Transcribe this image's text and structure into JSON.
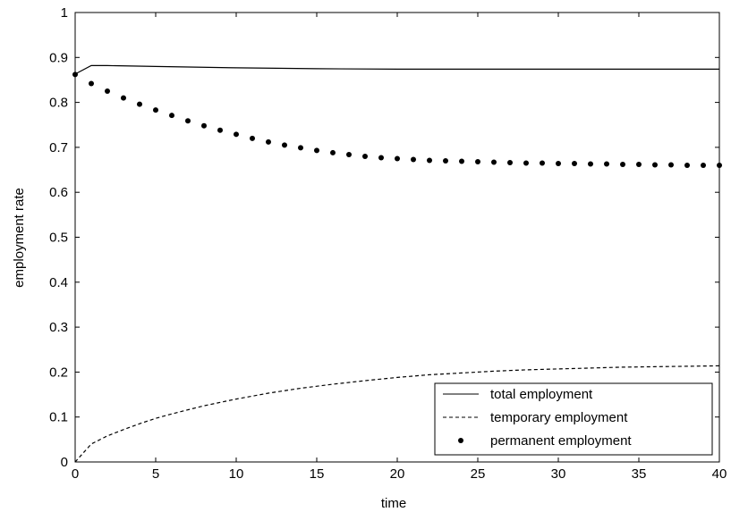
{
  "chart_data": {
    "type": "line",
    "title": "",
    "xlabel": "time",
    "ylabel": "employment rate",
    "xlim": [
      0,
      40
    ],
    "ylim": [
      0,
      1
    ],
    "x_ticks": [
      "0",
      "5",
      "10",
      "15",
      "20",
      "25",
      "30",
      "35",
      "40"
    ],
    "y_ticks": [
      "0",
      "0.1",
      "0.2",
      "0.3",
      "0.4",
      "0.5",
      "0.6",
      "0.7",
      "0.8",
      "0.9",
      "1"
    ],
    "grid": false,
    "legend_position": "bottom-right",
    "series": [
      {
        "name": "total employment",
        "style": "solid",
        "color": "#000000",
        "x": [
          0,
          1,
          2,
          5,
          10,
          15,
          20,
          25,
          30,
          35,
          40
        ],
        "y": [
          0.863,
          0.882,
          0.882,
          0.88,
          0.877,
          0.875,
          0.874,
          0.874,
          0.874,
          0.874,
          0.874
        ]
      },
      {
        "name": "temporary employment",
        "style": "dashed",
        "color": "#000000",
        "x": [
          0,
          1,
          2,
          3,
          4,
          5,
          6,
          8,
          10,
          12,
          14,
          16,
          18,
          20,
          22,
          24,
          26,
          28,
          30,
          32,
          34,
          36,
          38,
          40
        ],
        "y": [
          0.0,
          0.04,
          0.058,
          0.072,
          0.085,
          0.097,
          0.107,
          0.125,
          0.14,
          0.153,
          0.164,
          0.173,
          0.181,
          0.188,
          0.194,
          0.198,
          0.202,
          0.205,
          0.207,
          0.209,
          0.211,
          0.212,
          0.213,
          0.214
        ]
      },
      {
        "name": "permanent employment",
        "style": "dotted-markers",
        "color": "#000000",
        "x": [
          0,
          1,
          2,
          3,
          4,
          5,
          6,
          7,
          8,
          9,
          10,
          11,
          12,
          13,
          14,
          15,
          16,
          17,
          18,
          19,
          20,
          21,
          22,
          23,
          24,
          25,
          26,
          27,
          28,
          29,
          30,
          31,
          32,
          33,
          34,
          35,
          36,
          37,
          38,
          39,
          40
        ],
        "y": [
          0.862,
          0.842,
          0.825,
          0.81,
          0.796,
          0.783,
          0.771,
          0.759,
          0.748,
          0.738,
          0.729,
          0.72,
          0.712,
          0.705,
          0.699,
          0.693,
          0.688,
          0.684,
          0.68,
          0.677,
          0.675,
          0.673,
          0.671,
          0.67,
          0.669,
          0.668,
          0.667,
          0.666,
          0.665,
          0.665,
          0.664,
          0.664,
          0.663,
          0.663,
          0.662,
          0.662,
          0.661,
          0.661,
          0.66,
          0.66,
          0.66
        ]
      }
    ]
  }
}
